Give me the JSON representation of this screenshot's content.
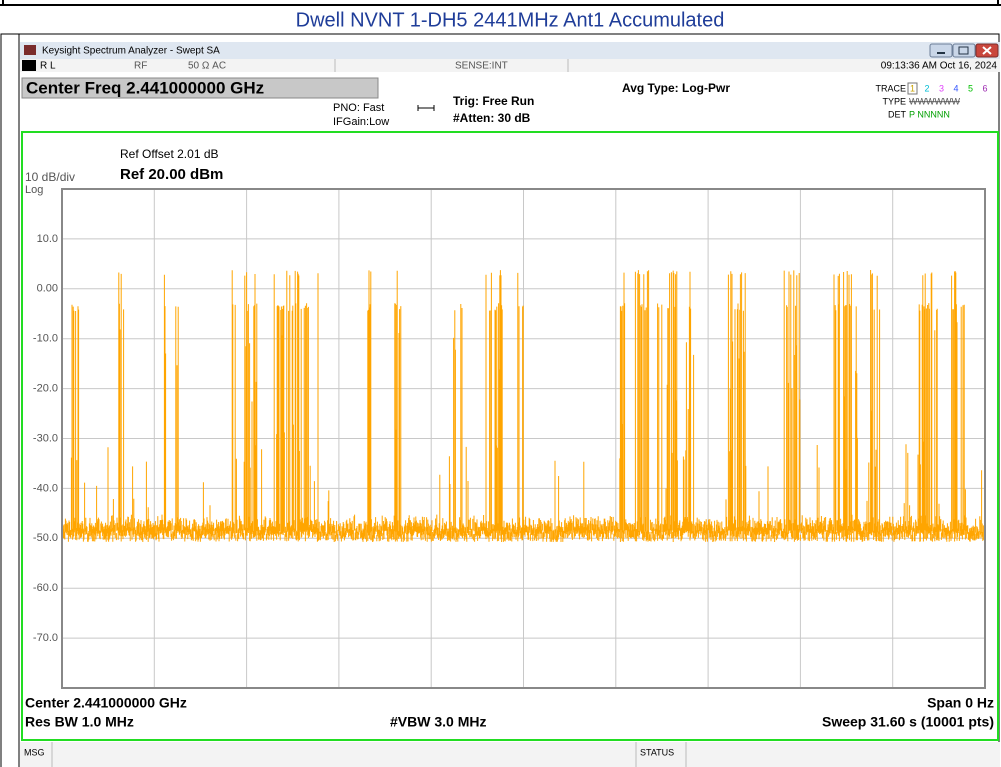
{
  "page_title": "Dwell NVNT 1-DH5 2441MHz Ant1 Accumulated",
  "window": {
    "title": "Keysight Spectrum Analyzer - Swept SA"
  },
  "status_row": {
    "rl": "R L",
    "rf": "RF",
    "impedance": "50 Ω  AC",
    "sense": "SENSE:INT",
    "datetime": "09:13:36 AM Oct 16, 2024"
  },
  "header": {
    "center_freq": "Center Freq 2.441000000 GHz",
    "pno": "PNO: Fast",
    "ifgain": "IFGain:Low",
    "trig": "Trig: Free Run",
    "atten": "#Atten: 30 dB",
    "avg_type": "Avg Type: Log-Pwr",
    "trace_label": "TRACE",
    "trace_nums": [
      "1",
      "2",
      "3",
      "4",
      "5",
      "6"
    ],
    "type_label": "TYPE",
    "type_value": "WWWWWW",
    "det_label": "DET",
    "det_value": "P NNNNN"
  },
  "plot": {
    "ref_offset": "Ref Offset 2.01 dB",
    "scale": "10 dB/div",
    "ref_level": "Ref 20.00 dBm",
    "log": "Log",
    "y_labels": [
      "10.0",
      "0.00",
      "-10.0",
      "-20.0",
      "-30.0",
      "-40.0",
      "-50.0",
      "-60.0",
      "-70.0"
    ]
  },
  "footer": {
    "center": "Center 2.441000000 GHz",
    "span": "Span 0 Hz",
    "res_bw": "Res BW 1.0 MHz",
    "vbw": "#VBW 3.0 MHz",
    "sweep": "Sweep  31.60 s (10001 pts)"
  },
  "message_bar": {
    "msg": "MSG",
    "status": "STATUS"
  }
}
